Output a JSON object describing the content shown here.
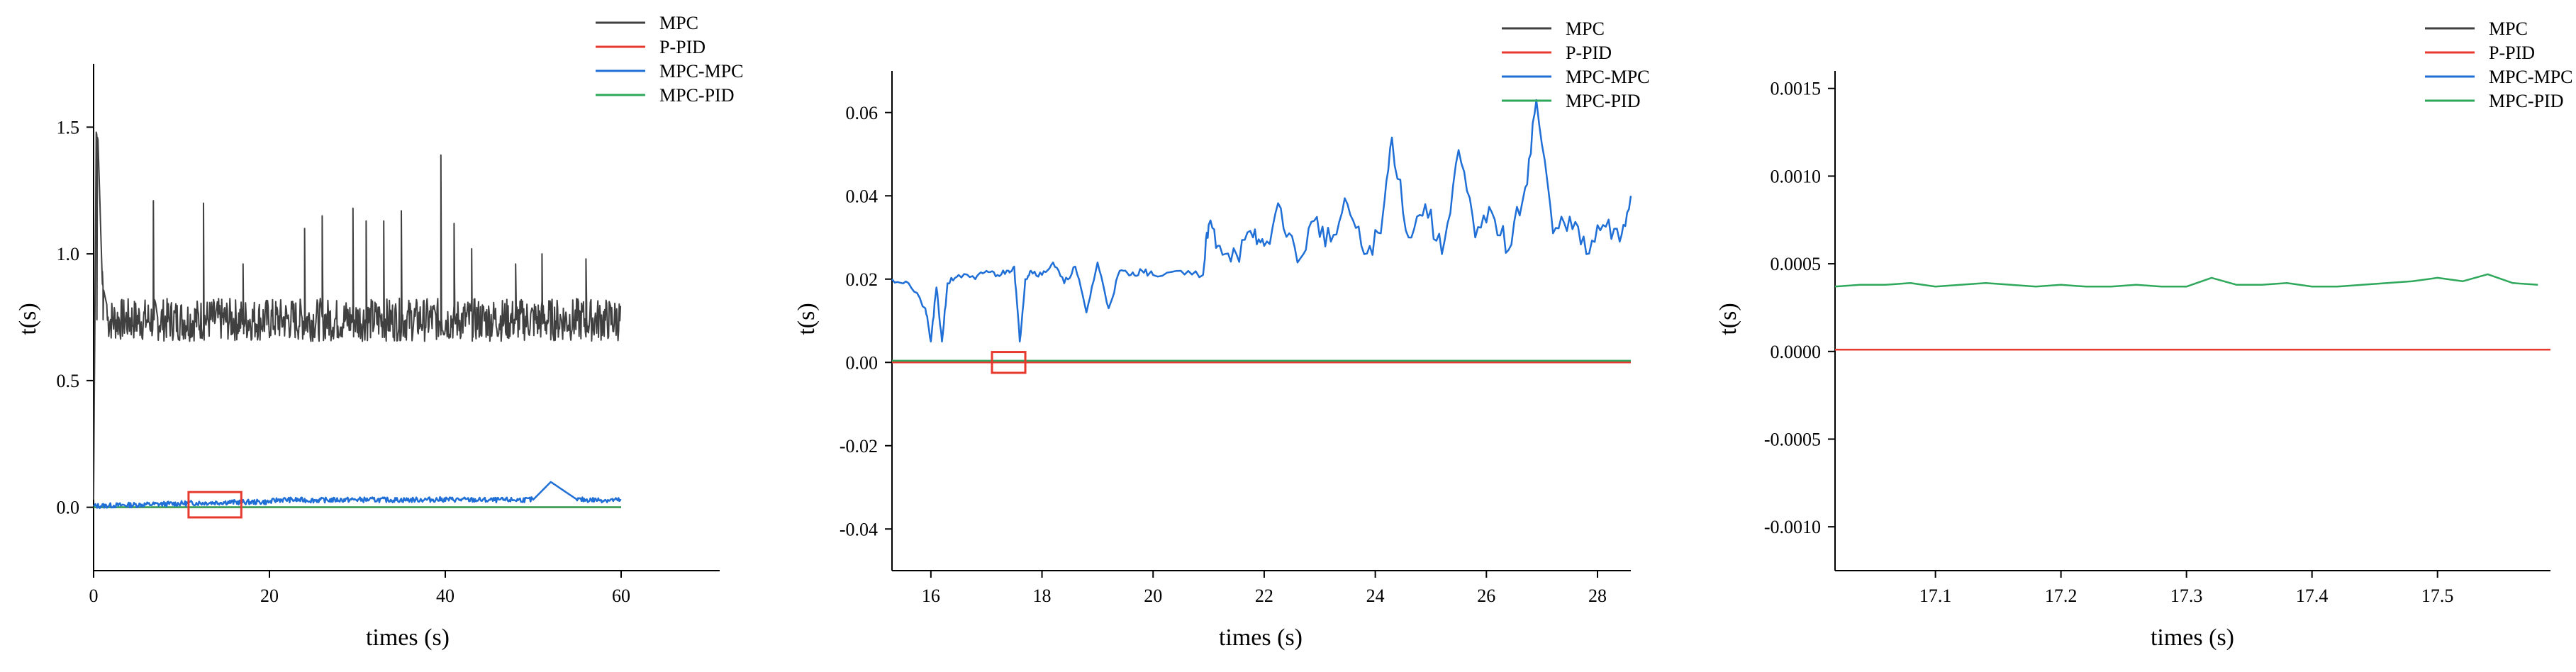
{
  "figure": {
    "panels": [
      {
        "xlabel": "times (s)",
        "ylabel": "t(s)",
        "xticks": [
          "0",
          "20",
          "40",
          "60"
        ],
        "yticks": [
          "0.0",
          "0.5",
          "1.0",
          "1.5"
        ],
        "legend": [
          "MPC",
          "P-PID",
          "MPC-MPC",
          "MPC-PID"
        ]
      },
      {
        "xlabel": "times (s)",
        "ylabel": "t(s)",
        "xticks": [
          "16",
          "18",
          "20",
          "22",
          "24",
          "26",
          "28"
        ],
        "yticks": [
          "-0.04",
          "-0.02",
          "0.00",
          "0.02",
          "0.04",
          "0.06"
        ],
        "legend": [
          "MPC",
          "P-PID",
          "MPC-MPC",
          "MPC-PID"
        ]
      },
      {
        "xlabel": "times (s)",
        "ylabel": "t(s)",
        "xticks": [
          "17.1",
          "17.2",
          "17.3",
          "17.4",
          "17.5"
        ],
        "yticks": [
          "-0.0010",
          "-0.0005",
          "0.0000",
          "0.0005",
          "0.0010",
          "0.0015"
        ],
        "legend": [
          "MPC",
          "P-PID",
          "MPC-MPC",
          "MPC-PID"
        ]
      }
    ]
  },
  "colors": {
    "MPC": "#404040",
    "P-PID": "#e8392f",
    "MPC-MPC": "#1f6fd6",
    "MPC-PID": "#2fa85c",
    "zoom_box": "#e8392f"
  },
  "chart_data": [
    {
      "type": "line",
      "xlim": [
        0,
        70
      ],
      "ylim": [
        -0.25,
        1.75
      ],
      "grid": false,
      "legend_position": "top-right, outside",
      "series": [
        {
          "name": "MPC",
          "x": [
            0,
            0.3,
            0.5,
            1,
            2,
            4,
            6,
            8,
            10,
            12,
            14,
            16,
            18,
            20,
            22,
            24,
            26,
            28,
            30,
            32,
            34,
            36,
            38,
            40,
            42,
            44,
            46,
            48,
            50,
            52,
            54,
            56,
            58,
            60
          ],
          "y": [
            0.03,
            1.48,
            1.45,
            0.88,
            0.72,
            0.78,
            0.74,
            0.8,
            0.73,
            0.86,
            0.75,
            0.72,
            0.78,
            0.74,
            0.8,
            0.73,
            0.86,
            0.75,
            0.79,
            0.72,
            0.77,
            0.74,
            0.81,
            0.72,
            0.78,
            0.75,
            0.8,
            0.73,
            0.77,
            0.74,
            0.79,
            0.72,
            0.76,
            0.73
          ]
        },
        {
          "name": "P-PID",
          "x": [
            0,
            60
          ],
          "y": [
            0.0001,
            0.0001
          ]
        },
        {
          "name": "MPC-MPC",
          "x": [
            0,
            5,
            10,
            15,
            20,
            21,
            25,
            30,
            35,
            40,
            45,
            50,
            52,
            55,
            60
          ],
          "y": [
            0.005,
            0.01,
            0.015,
            0.02,
            0.021,
            0.03,
            0.028,
            0.03,
            0.029,
            0.031,
            0.028,
            0.03,
            0.1,
            0.03,
            0.028
          ]
        },
        {
          "name": "MPC-PID",
          "x": [
            0,
            60
          ],
          "y": [
            0.0004,
            0.0004
          ]
        }
      ],
      "spikes_MPC": [
        [
          0.3,
          1.48
        ],
        [
          1,
          0.93
        ],
        [
          6.8,
          1.21
        ],
        [
          12.5,
          1.2
        ],
        [
          17,
          0.96
        ],
        [
          24,
          1.1
        ],
        [
          26,
          1.15
        ],
        [
          29.5,
          1.18
        ],
        [
          31,
          1.13
        ],
        [
          33,
          1.13
        ],
        [
          35,
          1.17
        ],
        [
          39.5,
          1.39
        ],
        [
          41,
          1.12
        ],
        [
          43,
          1.02
        ],
        [
          48,
          0.96
        ],
        [
          51,
          1.0
        ],
        [
          56,
          0.98
        ]
      ]
    },
    {
      "type": "line",
      "xlim": [
        15.3,
        28.6
      ],
      "ylim": [
        -0.05,
        0.07
      ],
      "grid": false,
      "legend_position": "top-right",
      "series": [
        {
          "name": "MPC-MPC",
          "x": [
            15.3,
            15.6,
            15.9,
            16.0,
            16.1,
            16.2,
            16.3,
            16.5,
            16.8,
            17.0,
            17.2,
            17.4,
            17.5,
            17.6,
            17.7,
            17.8,
            18.0,
            18.2,
            18.4,
            18.6,
            18.8,
            19.0,
            19.2,
            19.4,
            19.6,
            19.8,
            20.0,
            20.5,
            20.9,
            21.0,
            21.2,
            21.5,
            21.8,
            22.0,
            22.3,
            22.6,
            22.9,
            23.2,
            23.5,
            23.8,
            24.1,
            24.3,
            24.6,
            24.9,
            25.2,
            25.5,
            25.8,
            26.1,
            26.4,
            26.7,
            26.9,
            27.2,
            27.5,
            27.8,
            28.1,
            28.4,
            28.6
          ],
          "y": [
            0.02,
            0.019,
            0.013,
            0.005,
            0.018,
            0.005,
            0.019,
            0.021,
            0.02,
            0.022,
            0.021,
            0.022,
            0.023,
            0.005,
            0.02,
            0.022,
            0.021,
            0.024,
            0.019,
            0.023,
            0.012,
            0.024,
            0.013,
            0.022,
            0.021,
            0.022,
            0.021,
            0.022,
            0.021,
            0.033,
            0.028,
            0.026,
            0.03,
            0.028,
            0.037,
            0.024,
            0.034,
            0.029,
            0.038,
            0.026,
            0.031,
            0.054,
            0.03,
            0.038,
            0.026,
            0.051,
            0.03,
            0.036,
            0.027,
            0.042,
            0.063,
            0.031,
            0.035,
            0.026,
            0.033,
            0.029,
            0.04
          ]
        },
        {
          "name": "P-PID",
          "x": [
            15.3,
            28.6
          ],
          "y": [
            0.0,
            0.0
          ]
        },
        {
          "name": "MPC-PID",
          "x": [
            15.3,
            28.6
          ],
          "y": [
            0.0004,
            0.0004
          ]
        },
        {
          "name": "MPC",
          "x": [],
          "y": []
        }
      ]
    },
    {
      "type": "line",
      "xlim": [
        17.02,
        17.59
      ],
      "ylim": [
        -0.00125,
        0.0016
      ],
      "grid": false,
      "legend_position": "top-right",
      "series": [
        {
          "name": "MPC-PID",
          "x": [
            17.02,
            17.04,
            17.06,
            17.08,
            17.1,
            17.12,
            17.14,
            17.16,
            17.18,
            17.2,
            17.22,
            17.24,
            17.26,
            17.28,
            17.3,
            17.32,
            17.34,
            17.36,
            17.38,
            17.4,
            17.42,
            17.44,
            17.46,
            17.48,
            17.5,
            17.52,
            17.54,
            17.56,
            17.58
          ],
          "y": [
            0.00037,
            0.00038,
            0.00038,
            0.00039,
            0.00037,
            0.00038,
            0.00039,
            0.00038,
            0.00037,
            0.00038,
            0.00037,
            0.00037,
            0.00038,
            0.00037,
            0.00037,
            0.00042,
            0.00038,
            0.00038,
            0.00039,
            0.00037,
            0.00037,
            0.00038,
            0.00039,
            0.0004,
            0.00042,
            0.0004,
            0.00044,
            0.00039,
            0.00038
          ]
        },
        {
          "name": "P-PID",
          "x": [
            17.02,
            17.59
          ],
          "y": [
            1e-05,
            1e-05
          ]
        },
        {
          "name": "MPC",
          "x": [],
          "y": []
        },
        {
          "name": "MPC-MPC",
          "x": [],
          "y": []
        }
      ]
    }
  ],
  "zoom_boxes": [
    {
      "panel": 0,
      "x": [
        10.8,
        16.8
      ],
      "y": [
        -0.04,
        0.06
      ]
    },
    {
      "panel": 1,
      "x": [
        17.1,
        17.7
      ],
      "y": [
        -0.0025,
        0.0025
      ]
    }
  ]
}
